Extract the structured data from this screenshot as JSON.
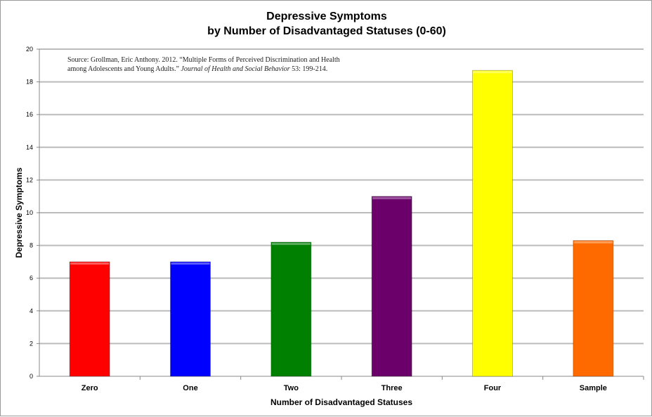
{
  "chart_data": {
    "type": "bar",
    "title": "Depressive Symptoms",
    "subtitle": "by Number of Disadvantaged Statuses (0-60)",
    "xlabel": "Number of Disadvantaged Statuses",
    "ylabel": "Depressive Symptoms",
    "categories": [
      "Zero",
      "One",
      "Two",
      "Three",
      "Four",
      "Sample"
    ],
    "values": [
      7.0,
      7.0,
      8.2,
      11.0,
      18.7,
      8.3
    ],
    "colors": [
      "#ff0000",
      "#0000ff",
      "#008000",
      "#6b006b",
      "#ffff00",
      "#ff6a00"
    ],
    "ylim": [
      0,
      20
    ],
    "yticks": [
      0,
      2,
      4,
      6,
      8,
      10,
      12,
      14,
      16,
      18,
      20
    ],
    "grid": true,
    "legend": "none",
    "source_line1": "Source: Grollman, Eric Anthony.  2012.  “Multiple Forms of Perceived Discrimination and Health",
    "source_line2_a": "among Adolescents and Young Adults.”  ",
    "source_line2_journal": "Journal of Health and Social Behavior",
    "source_line2_b": " 53: 199-214."
  }
}
